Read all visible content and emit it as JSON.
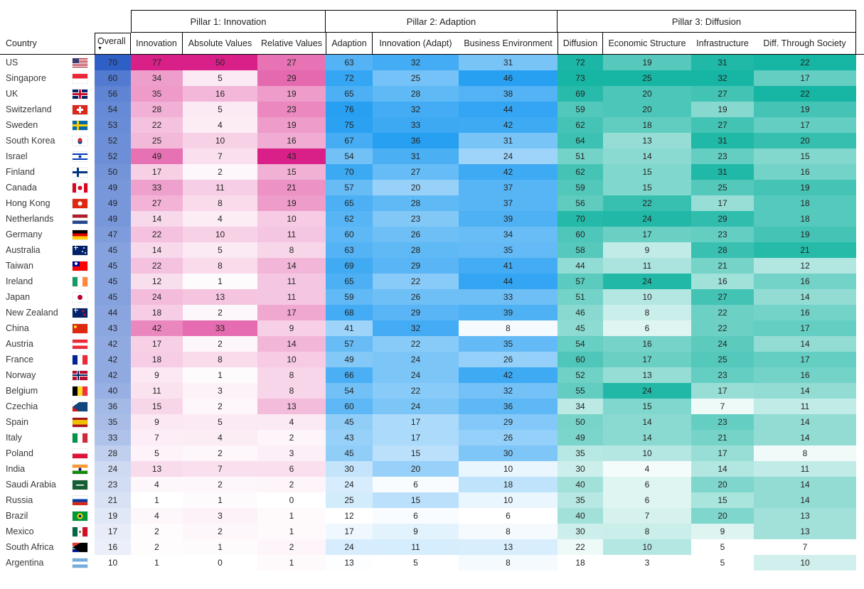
{
  "colors": {
    "accents": {
      "overall": "#2E5FC6",
      "pillar1": "#D82088",
      "pillar2": "#28A0F2",
      "pillar3": "#17B5A3"
    },
    "min_color": "#FFFFFF",
    "header_border": "#000000",
    "text": "#252423"
  },
  "header": {
    "sort_icon": "▼"
  },
  "chart_data": {
    "type": "table",
    "country_label": "Country",
    "sort": {
      "column": "Overall",
      "direction": "descending"
    },
    "pillars": [
      {
        "label": "Pillar 1: Innovation"
      },
      {
        "label": "Pillar 2: Adaption"
      },
      {
        "label": "Pillar 3: Diffusion"
      }
    ],
    "columns": [
      {
        "key": "overall",
        "label": "Overall",
        "group": "overall"
      },
      {
        "key": "innovation",
        "label": "Innovation",
        "group": "pillar1"
      },
      {
        "key": "absolute_values",
        "label": "Absolute Values",
        "group": "pillar1"
      },
      {
        "key": "relative_values",
        "label": "Relative Values",
        "group": "pillar1"
      },
      {
        "key": "adaption",
        "label": "Adaption",
        "group": "pillar2"
      },
      {
        "key": "innovation_adapt",
        "label": "Innovation (Adapt)",
        "group": "pillar2"
      },
      {
        "key": "business_environment",
        "label": "Business Environment",
        "group": "pillar2"
      },
      {
        "key": "diffusion",
        "label": "Diffusion",
        "group": "pillar3"
      },
      {
        "key": "economic_structure",
        "label": "Economic Structure",
        "group": "pillar3"
      },
      {
        "key": "infrastructure",
        "label": "Infrastructure",
        "group": "pillar3"
      },
      {
        "key": "diff_through_society",
        "label": "Diff. Through Society",
        "group": "pillar3"
      }
    ],
    "rows": [
      {
        "country": "US",
        "flag": "us",
        "values": [
          70,
          77,
          50,
          27,
          63,
          32,
          31,
          72,
          19,
          31,
          22
        ]
      },
      {
        "country": "Singapore",
        "flag": "sg",
        "values": [
          60,
          34,
          5,
          29,
          72,
          25,
          46,
          73,
          25,
          32,
          17
        ]
      },
      {
        "country": "UK",
        "flag": "uk",
        "values": [
          56,
          35,
          16,
          19,
          65,
          28,
          38,
          69,
          20,
          27,
          22
        ]
      },
      {
        "country": "Switzerland",
        "flag": "ch",
        "values": [
          54,
          28,
          5,
          23,
          76,
          32,
          44,
          59,
          20,
          19,
          19
        ]
      },
      {
        "country": "Sweden",
        "flag": "se",
        "values": [
          53,
          22,
          4,
          19,
          75,
          33,
          42,
          62,
          18,
          27,
          17
        ]
      },
      {
        "country": "South Korea",
        "flag": "kr",
        "values": [
          52,
          25,
          10,
          16,
          67,
          36,
          31,
          64,
          13,
          31,
          20
        ]
      },
      {
        "country": "Israel",
        "flag": "il",
        "values": [
          52,
          49,
          7,
          43,
          54,
          31,
          24,
          51,
          14,
          23,
          15
        ]
      },
      {
        "country": "Finland",
        "flag": "fi",
        "values": [
          50,
          17,
          2,
          15,
          70,
          27,
          42,
          62,
          15,
          31,
          16
        ]
      },
      {
        "country": "Canada",
        "flag": "ca",
        "values": [
          49,
          33,
          11,
          21,
          57,
          20,
          37,
          59,
          15,
          25,
          19
        ]
      },
      {
        "country": "Hong Kong",
        "flag": "hk",
        "values": [
          49,
          27,
          8,
          19,
          65,
          28,
          37,
          56,
          22,
          17,
          18
        ]
      },
      {
        "country": "Netherlands",
        "flag": "nl",
        "values": [
          49,
          14,
          4,
          10,
          62,
          23,
          39,
          70,
          24,
          29,
          18
        ]
      },
      {
        "country": "Germany",
        "flag": "de",
        "values": [
          47,
          22,
          10,
          11,
          60,
          26,
          34,
          60,
          17,
          23,
          19
        ]
      },
      {
        "country": "Australia",
        "flag": "au",
        "values": [
          45,
          14,
          5,
          8,
          63,
          28,
          35,
          58,
          9,
          28,
          21
        ]
      },
      {
        "country": "Taiwan",
        "flag": "tw",
        "values": [
          45,
          22,
          8,
          14,
          69,
          29,
          41,
          44,
          11,
          21,
          12
        ]
      },
      {
        "country": "Ireland",
        "flag": "ie",
        "values": [
          45,
          12,
          1,
          11,
          65,
          22,
          44,
          57,
          24,
          16,
          16
        ]
      },
      {
        "country": "Japan",
        "flag": "jp",
        "values": [
          45,
          24,
          13,
          11,
          59,
          26,
          33,
          51,
          10,
          27,
          14
        ]
      },
      {
        "country": "New Zealand",
        "flag": "nz",
        "values": [
          44,
          18,
          2,
          17,
          68,
          29,
          39,
          46,
          8,
          22,
          16
        ]
      },
      {
        "country": "China",
        "flag": "cn",
        "values": [
          43,
          42,
          33,
          9,
          41,
          32,
          8,
          45,
          6,
          22,
          17
        ]
      },
      {
        "country": "Austria",
        "flag": "at",
        "values": [
          42,
          17,
          2,
          14,
          57,
          22,
          35,
          54,
          16,
          24,
          14
        ]
      },
      {
        "country": "France",
        "flag": "fr",
        "values": [
          42,
          18,
          8,
          10,
          49,
          24,
          26,
          60,
          17,
          25,
          17
        ]
      },
      {
        "country": "Norway",
        "flag": "no",
        "values": [
          42,
          9,
          1,
          8,
          66,
          24,
          42,
          52,
          13,
          23,
          16
        ]
      },
      {
        "country": "Belgium",
        "flag": "be",
        "values": [
          40,
          11,
          3,
          8,
          54,
          22,
          32,
          55,
          24,
          17,
          14
        ]
      },
      {
        "country": "Czechia",
        "flag": "cz",
        "values": [
          36,
          15,
          2,
          13,
          60,
          24,
          36,
          34,
          15,
          7,
          11
        ]
      },
      {
        "country": "Spain",
        "flag": "es",
        "values": [
          35,
          9,
          5,
          4,
          45,
          17,
          29,
          50,
          14,
          23,
          14
        ]
      },
      {
        "country": "Italy",
        "flag": "it",
        "values": [
          33,
          7,
          4,
          2,
          43,
          17,
          26,
          49,
          14,
          21,
          14
        ]
      },
      {
        "country": "Poland",
        "flag": "pl",
        "values": [
          28,
          5,
          2,
          3,
          45,
          15,
          30,
          35,
          10,
          17,
          8
        ]
      },
      {
        "country": "India",
        "flag": "in",
        "values": [
          24,
          13,
          7,
          6,
          30,
          20,
          10,
          30,
          4,
          14,
          11
        ]
      },
      {
        "country": "Saudi Arabia",
        "flag": "sa",
        "values": [
          23,
          4,
          2,
          2,
          24,
          6,
          18,
          40,
          6,
          20,
          14
        ]
      },
      {
        "country": "Russia",
        "flag": "ru",
        "values": [
          21,
          1,
          1,
          0,
          25,
          15,
          10,
          35,
          6,
          15,
          14
        ]
      },
      {
        "country": "Brazil",
        "flag": "br",
        "values": [
          19,
          4,
          3,
          1,
          12,
          6,
          6,
          40,
          7,
          20,
          13
        ]
      },
      {
        "country": "Mexico",
        "flag": "mx",
        "values": [
          17,
          2,
          2,
          1,
          17,
          9,
          8,
          30,
          8,
          9,
          13
        ]
      },
      {
        "country": "South Africa",
        "flag": "za",
        "values": [
          16,
          2,
          1,
          2,
          24,
          11,
          13,
          22,
          10,
          5,
          7
        ]
      },
      {
        "country": "Argentina",
        "flag": "ar",
        "values": [
          10,
          1,
          0,
          1,
          13,
          5,
          8,
          18,
          3,
          5,
          10
        ]
      }
    ]
  }
}
